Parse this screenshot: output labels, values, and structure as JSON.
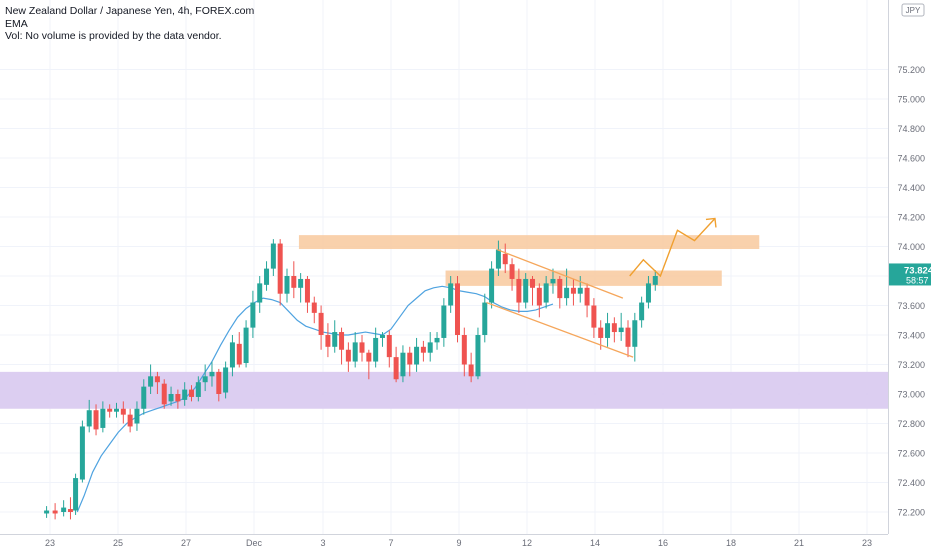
{
  "header": {
    "symbol_line": "New Zealand Dollar / Japanese Yen, 4h, FOREX.com",
    "indicator_line": "EMA",
    "volume_line": "Vol: No volume is provided by the data vendor."
  },
  "currency_badge": "JPY",
  "price_tag": {
    "price": "73.824",
    "countdown": "58:57"
  },
  "colors": {
    "up": "#26a69a",
    "down": "#ef5350",
    "ema": "#4fa3e0",
    "zone": "#d8c9f0",
    "resistance": "#f8c99e",
    "channel": "#f5a65b",
    "projection": "#f0a030",
    "price_tag": "#26a69a"
  },
  "chart_data": {
    "type": "candlestick",
    "y_ticks": [
      "72.200",
      "72.400",
      "72.600",
      "72.800",
      "73.000",
      "73.200",
      "73.400",
      "73.600",
      "73.800",
      "74.000",
      "74.200",
      "74.400",
      "74.600",
      "74.800",
      "75.000",
      "75.200"
    ],
    "x_ticks": [
      "23",
      "25",
      "27",
      "Dec",
      "3",
      "7",
      "9",
      "12",
      "14",
      "16",
      "18",
      "21",
      "23"
    ],
    "ylim": [
      72.2,
      75.3
    ],
    "support_zone": [
      72.9,
      73.15
    ],
    "resistance_levels": [
      {
        "from": "Dec 2",
        "to": "Dec 19",
        "low": 74.01,
        "high": 74.05
      },
      {
        "from": "Dec 9",
        "to": "Dec 18",
        "low": 73.76,
        "high": 73.81
      }
    ],
    "channel": {
      "upper": [
        [
          13.1,
          73.98
        ],
        [
          16.8,
          73.65
        ]
      ],
      "lower": [
        [
          12.8,
          73.62
        ],
        [
          17.1,
          73.25
        ]
      ]
    },
    "projection": [
      [
        17.0,
        73.8
      ],
      [
        17.4,
        73.91
      ],
      [
        17.9,
        73.8
      ],
      [
        18.4,
        74.11
      ],
      [
        18.9,
        74.04
      ],
      [
        19.5,
        74.19
      ]
    ],
    "ema_series": [
      72.2,
      72.31,
      72.47,
      72.58,
      72.66,
      72.74,
      72.8,
      72.84,
      72.87,
      72.89,
      72.91,
      72.93,
      72.95,
      72.98,
      73.04,
      73.13,
      73.22,
      73.33,
      73.43,
      73.52,
      73.58,
      73.62,
      73.65,
      73.64,
      73.62,
      73.56,
      73.5,
      73.46,
      73.44,
      73.42,
      73.41,
      73.4,
      73.4,
      73.41,
      73.42,
      73.41,
      73.4,
      73.44,
      73.52,
      73.6,
      73.65,
      73.7,
      73.72,
      73.73,
      73.72,
      73.7,
      73.69,
      73.68,
      73.66,
      73.62,
      73.59,
      73.57,
      73.56,
      73.56,
      73.57,
      73.59,
      73.61
    ],
    "ema_x": [
      0.8,
      1.0,
      1.25,
      1.5,
      1.75,
      2.0,
      2.25,
      2.5,
      2.75,
      3.0,
      3.25,
      3.5,
      3.75,
      4.0,
      4.25,
      4.5,
      4.75,
      5.0,
      5.25,
      5.5,
      5.75,
      6.0,
      6.25,
      6.5,
      6.75,
      7.0,
      7.25,
      7.5,
      7.75,
      8.0,
      8.25,
      8.5,
      8.75,
      9.0,
      9.25,
      9.5,
      9.75,
      10.0,
      10.25,
      10.5,
      10.75,
      11.0,
      11.25,
      11.5,
      11.75,
      12.0,
      12.25,
      12.5,
      12.75,
      13.0,
      13.25,
      13.5,
      13.75,
      14.0,
      14.25,
      14.5,
      14.75
    ],
    "candles": [
      [
        -0.1,
        72.19,
        72.21,
        72.16,
        72.24
      ],
      [
        0.15,
        72.21,
        72.19,
        72.15,
        72.26
      ],
      [
        0.4,
        72.2,
        72.23,
        72.17,
        72.28
      ],
      [
        0.6,
        72.22,
        72.2,
        72.15,
        72.3
      ],
      [
        0.75,
        72.21,
        72.43,
        72.18,
        72.46
      ],
      [
        0.95,
        72.42,
        72.78,
        72.4,
        72.82
      ],
      [
        1.15,
        72.78,
        72.89,
        72.74,
        72.96
      ],
      [
        1.35,
        72.89,
        72.76,
        72.72,
        72.93
      ],
      [
        1.55,
        72.77,
        72.9,
        72.74,
        72.95
      ],
      [
        1.75,
        72.9,
        72.88,
        72.84,
        72.93
      ],
      [
        1.95,
        72.88,
        72.9,
        72.84,
        72.94
      ],
      [
        2.15,
        72.9,
        72.86,
        72.8,
        72.95
      ],
      [
        2.35,
        72.86,
        72.78,
        72.74,
        72.9
      ],
      [
        2.55,
        72.8,
        72.9,
        72.75,
        72.95
      ],
      [
        2.75,
        72.9,
        73.05,
        72.86,
        73.1
      ],
      [
        2.95,
        73.05,
        73.12,
        73.0,
        73.2
      ],
      [
        3.15,
        73.12,
        73.08,
        73.0,
        73.15
      ],
      [
        3.35,
        73.07,
        72.93,
        72.9,
        73.1
      ],
      [
        3.55,
        72.95,
        73.0,
        72.92,
        73.05
      ],
      [
        3.75,
        73.0,
        72.95,
        72.9,
        73.03
      ],
      [
        3.95,
        72.96,
        73.03,
        72.92,
        73.08
      ],
      [
        4.15,
        73.03,
        72.98,
        72.95,
        73.06
      ],
      [
        4.35,
        72.98,
        73.08,
        72.95,
        73.12
      ],
      [
        4.55,
        73.08,
        73.12,
        73.02,
        73.2
      ],
      [
        4.75,
        73.12,
        73.15,
        73.05,
        73.22
      ],
      [
        4.95,
        73.15,
        73.0,
        72.95,
        73.17
      ],
      [
        5.15,
        73.01,
        73.18,
        72.97,
        73.22
      ],
      [
        5.35,
        73.18,
        73.35,
        73.12,
        73.4
      ],
      [
        5.55,
        73.34,
        73.2,
        73.18,
        73.42
      ],
      [
        5.75,
        73.21,
        73.45,
        73.18,
        73.5
      ],
      [
        5.95,
        73.45,
        73.62,
        73.38,
        73.7
      ],
      [
        6.15,
        73.62,
        73.75,
        73.55,
        73.8
      ],
      [
        6.35,
        73.74,
        73.85,
        73.7,
        73.9
      ],
      [
        6.55,
        73.85,
        74.02,
        73.8,
        74.05
      ],
      [
        6.75,
        74.02,
        73.68,
        73.6,
        74.05
      ],
      [
        6.95,
        73.68,
        73.8,
        73.62,
        73.85
      ],
      [
        7.15,
        73.8,
        73.72,
        73.65,
        73.9
      ],
      [
        7.35,
        73.72,
        73.78,
        73.62,
        73.82
      ],
      [
        7.55,
        73.78,
        73.62,
        73.55,
        73.8
      ],
      [
        7.75,
        73.62,
        73.55,
        73.48,
        73.66
      ],
      [
        7.95,
        73.55,
        73.4,
        73.3,
        73.6
      ],
      [
        8.15,
        73.4,
        73.32,
        73.25,
        73.48
      ],
      [
        8.35,
        73.32,
        73.42,
        73.28,
        73.5
      ],
      [
        8.55,
        73.42,
        73.3,
        73.2,
        73.45
      ],
      [
        8.75,
        73.3,
        73.22,
        73.15,
        73.35
      ],
      [
        8.95,
        73.22,
        73.35,
        73.18,
        73.42
      ],
      [
        9.15,
        73.35,
        73.28,
        73.22,
        73.4
      ],
      [
        9.35,
        73.28,
        73.22,
        73.1,
        73.3
      ],
      [
        9.55,
        73.22,
        73.38,
        73.18,
        73.45
      ],
      [
        9.75,
        73.38,
        73.4,
        73.32,
        73.42
      ],
      [
        9.95,
        73.4,
        73.25,
        73.18,
        73.43
      ],
      [
        10.15,
        73.25,
        73.1,
        73.08,
        73.32
      ],
      [
        10.35,
        73.12,
        73.28,
        73.08,
        73.33
      ],
      [
        10.55,
        73.28,
        73.2,
        73.12,
        73.32
      ],
      [
        10.75,
        73.2,
        73.32,
        73.15,
        73.38
      ],
      [
        10.95,
        73.32,
        73.28,
        73.22,
        73.36
      ],
      [
        11.15,
        73.28,
        73.35,
        73.22,
        73.42
      ],
      [
        11.35,
        73.35,
        73.38,
        73.3,
        73.42
      ],
      [
        11.55,
        73.38,
        73.6,
        73.32,
        73.65
      ],
      [
        11.75,
        73.6,
        73.75,
        73.55,
        73.8
      ],
      [
        11.95,
        73.75,
        73.4,
        73.35,
        73.8
      ],
      [
        12.15,
        73.4,
        73.2,
        73.12,
        73.45
      ],
      [
        12.35,
        73.2,
        73.12,
        73.08,
        73.28
      ],
      [
        12.55,
        73.12,
        73.4,
        73.1,
        73.45
      ],
      [
        12.75,
        73.4,
        73.62,
        73.35,
        73.68
      ],
      [
        12.95,
        73.62,
        73.85,
        73.58,
        73.9
      ],
      [
        13.15,
        73.85,
        73.98,
        73.8,
        74.04
      ],
      [
        13.35,
        73.95,
        73.88,
        73.82,
        74.02
      ],
      [
        13.55,
        73.88,
        73.78,
        73.7,
        73.92
      ],
      [
        13.75,
        73.78,
        73.62,
        73.55,
        73.85
      ],
      [
        13.95,
        73.62,
        73.78,
        73.58,
        73.82
      ],
      [
        14.15,
        73.78,
        73.72,
        73.6,
        73.8
      ],
      [
        14.35,
        73.72,
        73.6,
        73.52,
        73.75
      ],
      [
        14.55,
        73.62,
        73.75,
        73.58,
        73.8
      ],
      [
        14.75,
        73.75,
        73.78,
        73.68,
        73.85
      ],
      [
        14.95,
        73.78,
        73.65,
        73.58,
        73.8
      ],
      [
        15.15,
        73.65,
        73.72,
        73.6,
        73.85
      ],
      [
        15.35,
        73.72,
        73.68,
        73.6,
        73.78
      ],
      [
        15.55,
        73.68,
        73.72,
        73.62,
        73.8
      ],
      [
        15.75,
        73.72,
        73.6,
        73.52,
        73.75
      ],
      [
        15.95,
        73.6,
        73.45,
        73.38,
        73.65
      ],
      [
        16.15,
        73.45,
        73.38,
        73.3,
        73.5
      ],
      [
        16.35,
        73.38,
        73.48,
        73.32,
        73.55
      ],
      [
        16.55,
        73.48,
        73.42,
        73.35,
        73.52
      ],
      [
        16.75,
        73.42,
        73.45,
        73.36,
        73.55
      ],
      [
        16.95,
        73.45,
        73.32,
        73.25,
        73.5
      ],
      [
        17.15,
        73.32,
        73.5,
        73.22,
        73.55
      ],
      [
        17.35,
        73.5,
        73.62,
        73.45,
        73.66
      ],
      [
        17.55,
        73.62,
        73.75,
        73.58,
        73.8
      ],
      [
        17.75,
        73.74,
        73.8,
        73.7,
        73.84
      ]
    ]
  }
}
